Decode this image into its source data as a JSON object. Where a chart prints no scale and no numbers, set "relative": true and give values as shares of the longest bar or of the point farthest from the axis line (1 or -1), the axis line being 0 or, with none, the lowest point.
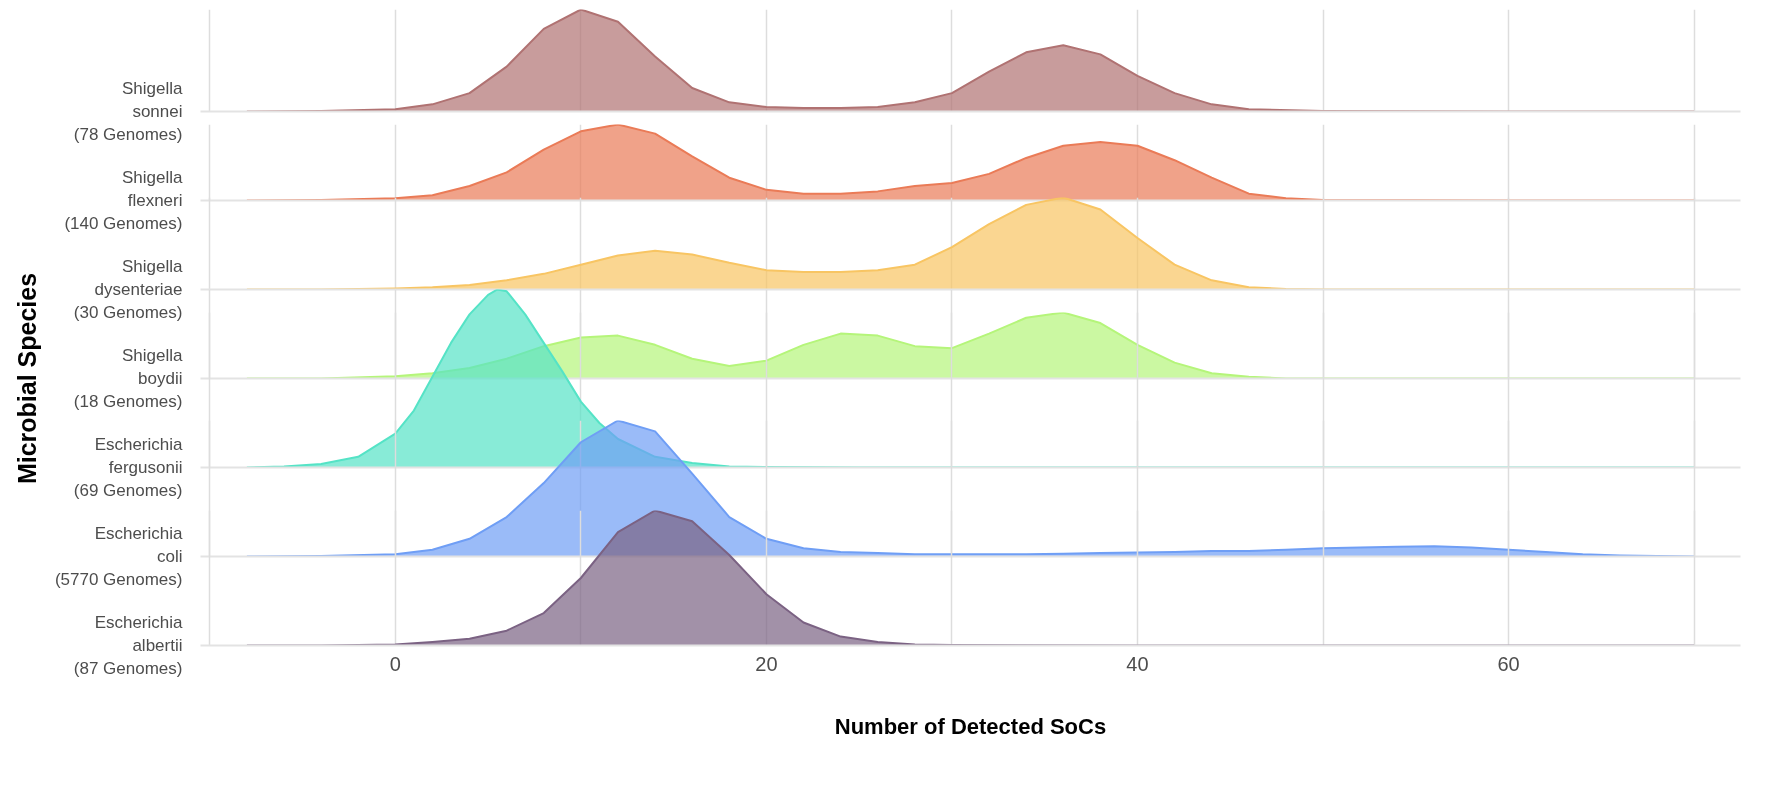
{
  "chart_data": [
    {
      "type": "area",
      "relative": true,
      "xlim": [
        -10.5,
        72.5
      ],
      "xticks": [
        {
          "value": -10,
          "label": null
        },
        0,
        {
          "value": 10,
          "label": null
        },
        20,
        {
          "value": 30,
          "label": null
        },
        40,
        {
          "value": 50,
          "label": null
        },
        60,
        {
          "value": 70,
          "label": null
        }
      ],
      "tick_labels": false,
      "grid": "x",
      "series": [
        {
          "name": "Shigella\nsonnei\n(78 Genomes)",
          "color": "#b07272",
          "x": [
            -8,
            -4,
            0,
            2,
            4,
            6,
            8,
            10,
            12,
            14,
            16,
            18,
            20,
            22,
            24,
            26,
            28,
            30,
            32,
            34,
            36,
            38,
            40,
            42,
            44,
            46,
            50,
            60,
            70
          ],
          "values": [
            0,
            0.005,
            0.023,
            0.07,
            0.18,
            0.44,
            0.81,
            1,
            0.88,
            0.54,
            0.23,
            0.09,
            0.044,
            0.035,
            0.035,
            0.044,
            0.09,
            0.18,
            0.39,
            0.58,
            0.65,
            0.56,
            0.35,
            0.18,
            0.07,
            0.023,
            0.005,
            0,
            0
          ]
        }
      ]
    },
    {
      "type": "area",
      "relative": true,
      "xlim": [
        -10.5,
        72.5
      ],
      "xticks": [
        {
          "value": -10,
          "label": null
        },
        0,
        {
          "value": 10,
          "label": null
        },
        20,
        {
          "value": 30,
          "label": null
        },
        40,
        {
          "value": 50,
          "label": null
        },
        60,
        {
          "value": 70,
          "label": null
        }
      ],
      "tick_labels": false,
      "grid": "x",
      "series": [
        {
          "name": "Shigella\nflexneri\n(140 Genomes)",
          "color": "#ea7b57",
          "x": [
            -8,
            -4,
            0,
            2,
            4,
            6,
            8,
            10,
            12,
            14,
            16,
            18,
            20,
            22,
            24,
            26,
            28,
            30,
            32,
            34,
            36,
            38,
            40,
            42,
            44,
            46,
            48,
            50,
            60,
            70
          ],
          "values": [
            0,
            0.007,
            0.03,
            0.07,
            0.19,
            0.37,
            0.67,
            0.91,
            1,
            0.88,
            0.58,
            0.3,
            0.14,
            0.09,
            0.09,
            0.12,
            0.19,
            0.23,
            0.35,
            0.56,
            0.72,
            0.77,
            0.72,
            0.53,
            0.3,
            0.09,
            0.03,
            0.007,
            0,
            0
          ]
        }
      ]
    },
    {
      "type": "area",
      "relative": true,
      "xlim": [
        -10.5,
        72.5
      ],
      "xticks": [
        {
          "value": -10,
          "label": null
        },
        0,
        {
          "value": 10,
          "label": null
        },
        20,
        {
          "value": 30,
          "label": null
        },
        40,
        {
          "value": 50,
          "label": null
        },
        60,
        {
          "value": 70,
          "label": null
        }
      ],
      "tick_labels": false,
      "grid": "x",
      "series": [
        {
          "name": "Shigella\ndysenteriae\n(30 Genomes)",
          "color": "#f8c563",
          "x": [
            -8,
            -4,
            0,
            2,
            4,
            6,
            8,
            10,
            12,
            14,
            16,
            18,
            20,
            22,
            24,
            26,
            28,
            30,
            32,
            34,
            36,
            38,
            40,
            42,
            44,
            46,
            48,
            50,
            60,
            70
          ],
          "values": [
            0,
            0,
            0.012,
            0.025,
            0.05,
            0.1,
            0.17,
            0.27,
            0.37,
            0.42,
            0.38,
            0.29,
            0.21,
            0.19,
            0.19,
            0.21,
            0.27,
            0.46,
            0.71,
            0.92,
            1,
            0.87,
            0.56,
            0.27,
            0.1,
            0.025,
            0.006,
            0,
            0,
            0
          ]
        }
      ]
    },
    {
      "type": "area",
      "relative": true,
      "xlim": [
        -10.5,
        72.5
      ],
      "xticks": [
        {
          "value": -10,
          "label": null
        },
        0,
        {
          "value": 10,
          "label": null
        },
        20,
        {
          "value": 30,
          "label": null
        },
        40,
        {
          "value": 50,
          "label": null
        },
        60,
        {
          "value": 70,
          "label": null
        }
      ],
      "tick_labels": false,
      "grid": "x",
      "series": [
        {
          "name": "Shigella\nboydii\n(18 Genomes)",
          "color": "#b5f57a",
          "x": [
            -8,
            -4,
            0,
            2,
            4,
            6,
            8,
            10,
            12,
            14,
            16,
            18,
            20,
            22,
            24,
            26,
            28,
            30,
            32,
            34,
            36,
            38,
            40,
            42,
            44,
            46,
            48,
            50,
            60,
            70
          ],
          "values": [
            0,
            0,
            0.035,
            0.08,
            0.16,
            0.3,
            0.49,
            0.62,
            0.65,
            0.51,
            0.3,
            0.19,
            0.27,
            0.51,
            0.68,
            0.65,
            0.49,
            0.46,
            0.68,
            0.92,
            1,
            0.84,
            0.51,
            0.24,
            0.08,
            0.027,
            0,
            0,
            0,
            0
          ]
        }
      ]
    },
    {
      "type": "area",
      "relative": true,
      "xlim": [
        -10.5,
        72.5
      ],
      "xticks": [
        {
          "value": -10,
          "label": null
        },
        0,
        {
          "value": 10,
          "label": null
        },
        20,
        {
          "value": 30,
          "label": null
        },
        40,
        {
          "value": 50,
          "label": null
        },
        60,
        {
          "value": 70,
          "label": null
        }
      ],
      "tick_labels": false,
      "grid": "x",
      "ylabel": "Microbial Species",
      "series": [
        {
          "name": "Escherichia\nfergusonii\n(69 Genomes)",
          "color": "#55e3c6",
          "x": [
            -8,
            -6,
            -4,
            -2,
            0,
            1,
            2,
            3,
            4,
            5,
            5.5,
            6,
            7,
            8,
            9,
            10,
            11,
            12,
            14,
            16,
            18,
            20,
            25,
            30,
            40,
            50,
            60,
            70
          ],
          "values": [
            0,
            0.006,
            0.02,
            0.06,
            0.19,
            0.32,
            0.51,
            0.7,
            0.86,
            0.97,
            1,
            0.99,
            0.86,
            0.7,
            0.54,
            0.37,
            0.25,
            0.16,
            0.06,
            0.025,
            0.006,
            0.003,
            0,
            0,
            0,
            0,
            0,
            0
          ]
        }
      ]
    },
    {
      "type": "area",
      "relative": true,
      "xlim": [
        -10.5,
        72.5
      ],
      "xticks": [
        {
          "value": -10,
          "label": null
        },
        0,
        {
          "value": 10,
          "label": null
        },
        20,
        {
          "value": 30,
          "label": null
        },
        40,
        {
          "value": 50,
          "label": null
        },
        60,
        {
          "value": 70,
          "label": null
        }
      ],
      "tick_labels": false,
      "grid": "x",
      "series": [
        {
          "name": "Escherichia\ncoli\n(5770 Genomes)",
          "color": "#6f9ef5",
          "x": [
            -8,
            -4,
            0,
            2,
            4,
            6,
            8,
            10,
            12,
            14,
            16,
            18,
            20,
            22,
            24,
            26,
            28,
            30,
            32,
            34,
            36,
            38,
            40,
            42,
            44,
            46,
            48,
            50,
            52,
            54,
            56,
            58,
            60,
            62,
            64,
            66,
            68,
            70
          ],
          "values": [
            0,
            0.004,
            0.017,
            0.05,
            0.13,
            0.29,
            0.54,
            0.84,
            1,
            0.92,
            0.61,
            0.29,
            0.13,
            0.06,
            0.033,
            0.026,
            0.017,
            0.017,
            0.017,
            0.017,
            0.021,
            0.026,
            0.029,
            0.033,
            0.04,
            0.04,
            0.05,
            0.06,
            0.066,
            0.071,
            0.075,
            0.066,
            0.05,
            0.033,
            0.017,
            0.008,
            0.004,
            0
          ]
        }
      ]
    },
    {
      "type": "area",
      "relative": true,
      "xlabel": "Number of Detected SoCs",
      "xlim": [
        -10.5,
        72.5
      ],
      "xticks": [
        {
          "value": -10,
          "label": null
        },
        0,
        {
          "value": 10,
          "label": null
        },
        20,
        {
          "value": 30,
          "label": null
        },
        40,
        {
          "value": 50,
          "label": null
        },
        60,
        {
          "value": 70,
          "label": null
        }
      ],
      "tick_labels": "x",
      "grid": "x",
      "series": [
        {
          "name": "Escherichia\nalbertii\n(87 Genomes)",
          "color": "#7b6283",
          "x": [
            -8,
            -4,
            0,
            2,
            4,
            6,
            8,
            10,
            12,
            14,
            16,
            18,
            20,
            22,
            24,
            26,
            28,
            30,
            40,
            70
          ],
          "values": [
            0,
            0,
            0.008,
            0.026,
            0.05,
            0.11,
            0.24,
            0.5,
            0.84,
            1,
            0.92,
            0.67,
            0.38,
            0.17,
            0.066,
            0.026,
            0.008,
            0.004,
            0,
            0
          ]
        }
      ]
    }
  ]
}
